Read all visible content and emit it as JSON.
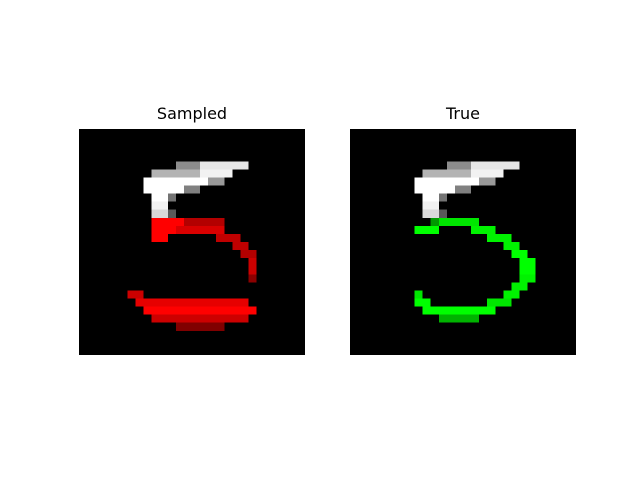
{
  "panels": [
    {
      "title": "Sampled",
      "completion_color": "#ff0000"
    },
    {
      "title": "True",
      "completion_color": "#00ff00"
    }
  ],
  "colors": {
    "background": "#ffffff",
    "image_background": "#000000",
    "observed_stroke": "#ffffff"
  }
}
